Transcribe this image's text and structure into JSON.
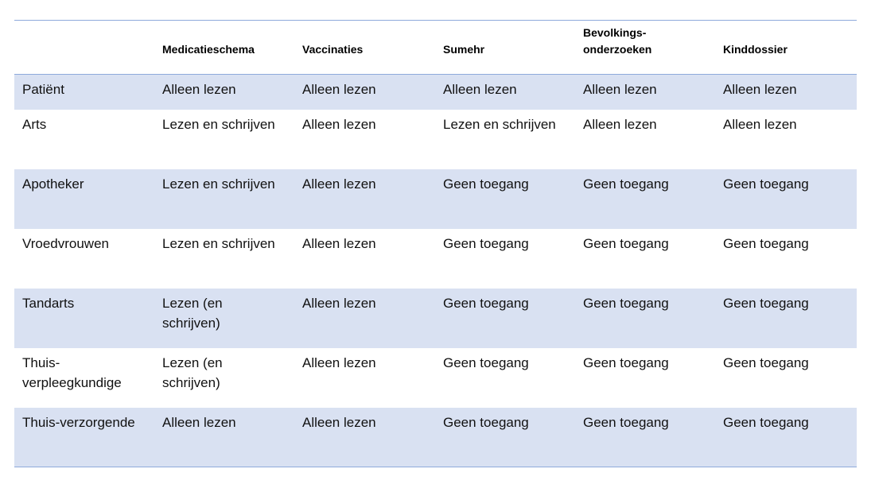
{
  "colors": {
    "band": "#d9e1f2",
    "rule": "#8eaadb"
  },
  "headers": [
    "",
    "Medicatieschema",
    "Vaccinaties",
    "Sumehr",
    "Bevolkings-\nonderzoeken",
    "Kinddossier"
  ],
  "rows": [
    [
      "Patiënt",
      "Alleen lezen",
      "Alleen lezen",
      "Alleen lezen",
      "Alleen lezen",
      "Alleen lezen"
    ],
    [
      "Arts",
      "Lezen en schrijven",
      "Alleen lezen",
      "Lezen en schrijven",
      "Alleen lezen",
      "Alleen lezen"
    ],
    [
      "Apotheker",
      "Lezen en schrijven",
      "Alleen lezen",
      "Geen toegang",
      "Geen toegang",
      "Geen toegang"
    ],
    [
      "Vroedvrouwen",
      "Lezen en schrijven",
      "Alleen lezen",
      "Geen toegang",
      "Geen toegang",
      "Geen toegang"
    ],
    [
      "Tandarts",
      "Lezen (en schrijven)",
      "Alleen lezen",
      "Geen toegang",
      "Geen toegang",
      "Geen toegang"
    ],
    [
      "Thuis-verpleegkundige",
      "Lezen (en schrijven)",
      "Alleen lezen",
      "Geen toegang",
      "Geen toegang",
      "Geen toegang"
    ],
    [
      "Thuis-verzorgende",
      "Alleen lezen",
      "Alleen lezen",
      "Geen toegang",
      "Geen toegang",
      "Geen toegang"
    ]
  ]
}
